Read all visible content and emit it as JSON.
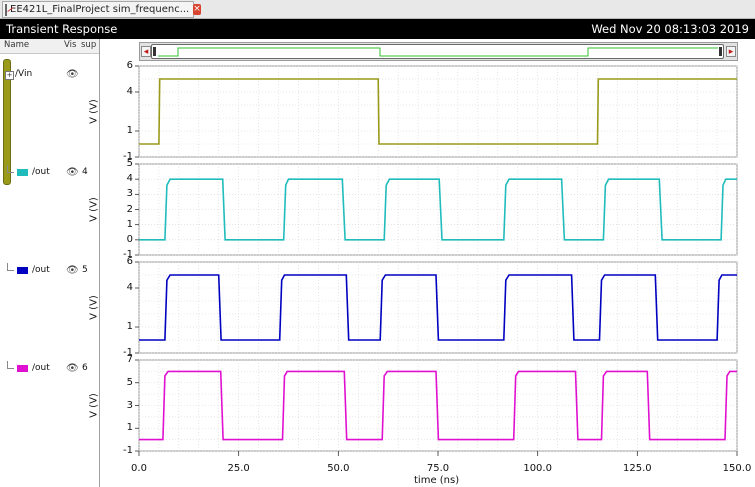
{
  "tab": {
    "title": "EE421L_FinalProject sim_frequenc...",
    "close_glyph": "×"
  },
  "window": {
    "title": "Transient Response",
    "timestamp": "Wed Nov 20 08:13:03 2019"
  },
  "columns": {
    "name": "Name",
    "vis": "Vis",
    "sup": "sup"
  },
  "signals": [
    {
      "name": "/Vin",
      "expand": "+",
      "number": "",
      "color": "#9a9a1a",
      "eye_icon": "eye-icon"
    },
    {
      "name": "/out",
      "number": "4",
      "color": "#20bcbc",
      "eye_icon": "eye-icon"
    },
    {
      "name": "/out",
      "number": "5",
      "color": "#0000c0",
      "eye_icon": "eye-icon"
    },
    {
      "name": "/out",
      "number": "6",
      "color": "#e010d0",
      "eye_icon": "eye-icon"
    }
  ],
  "scrollbar": {
    "left_arrow": "◂",
    "right_arrow": "▸"
  },
  "xaxis": {
    "title": "time (ns)",
    "ticks": [
      "0.0",
      "25.0",
      "50.0",
      "75.0",
      "100.0",
      "125.0",
      "150.0"
    ]
  },
  "yaxis_title": "V (V)",
  "chart_data": [
    {
      "type": "line",
      "name": "/Vin",
      "color": "#9a9a1a",
      "xlim": [
        0,
        150
      ],
      "ylim": [
        -1,
        6
      ],
      "yticks": [
        "6",
        "4",
        "1",
        "-1"
      ],
      "yticks_values": [
        6,
        4,
        1,
        -1
      ],
      "points": [
        [
          0,
          0
        ],
        [
          5,
          0
        ],
        [
          5.2,
          5
        ],
        [
          60,
          5
        ],
        [
          60.2,
          0
        ],
        [
          115,
          0
        ],
        [
          115.2,
          5
        ],
        [
          150,
          5
        ]
      ]
    },
    {
      "type": "line",
      "name": "/out",
      "color": "#20bcbc",
      "xlim": [
        0,
        150
      ],
      "ylim": [
        -1,
        5
      ],
      "yticks": [
        "5",
        "4",
        "3",
        "2",
        "1",
        "0",
        "-1"
      ],
      "yticks_values": [
        5,
        4,
        3,
        2,
        1,
        0,
        -1
      ],
      "points": [
        [
          0,
          0
        ],
        [
          6.5,
          0
        ],
        [
          7,
          3.6
        ],
        [
          7.8,
          4
        ],
        [
          21,
          4
        ],
        [
          21.6,
          0
        ],
        [
          36.3,
          0
        ],
        [
          36.8,
          3.6
        ],
        [
          37.5,
          4
        ],
        [
          51,
          4
        ],
        [
          51.7,
          0
        ],
        [
          61.5,
          0
        ],
        [
          62,
          3.6
        ],
        [
          62.8,
          4
        ],
        [
          75.3,
          4
        ],
        [
          76,
          0
        ],
        [
          91.5,
          0
        ],
        [
          92,
          3.6
        ],
        [
          92.8,
          4
        ],
        [
          106,
          4
        ],
        [
          106.7,
          0
        ],
        [
          116.5,
          0
        ],
        [
          117,
          3.6
        ],
        [
          117.8,
          4
        ],
        [
          130.5,
          4
        ],
        [
          131.2,
          0
        ],
        [
          146,
          0
        ],
        [
          146.5,
          3.6
        ],
        [
          147.2,
          4
        ],
        [
          150,
          4
        ]
      ]
    },
    {
      "type": "line",
      "name": "/out",
      "color": "#0000c0",
      "xlim": [
        0,
        150
      ],
      "ylim": [
        -1,
        6
      ],
      "yticks": [
        "6",
        "4",
        "1",
        "-1"
      ],
      "yticks_values": [
        6,
        4,
        1,
        -1
      ],
      "points": [
        [
          0,
          0
        ],
        [
          6.5,
          0
        ],
        [
          7,
          4.6
        ],
        [
          7.8,
          5
        ],
        [
          20,
          5
        ],
        [
          20.6,
          0
        ],
        [
          35.3,
          0
        ],
        [
          35.8,
          4.6
        ],
        [
          36.5,
          5
        ],
        [
          52,
          5
        ],
        [
          52.6,
          0
        ],
        [
          60.5,
          0
        ],
        [
          61,
          4.6
        ],
        [
          61.8,
          5
        ],
        [
          74.5,
          5
        ],
        [
          75.1,
          0
        ],
        [
          91.5,
          0
        ],
        [
          92,
          4.6
        ],
        [
          92.8,
          5
        ],
        [
          108.5,
          5
        ],
        [
          109.1,
          0
        ],
        [
          115.5,
          0
        ],
        [
          116,
          4.6
        ],
        [
          116.8,
          5
        ],
        [
          129.5,
          5
        ],
        [
          130.1,
          0
        ],
        [
          145,
          0
        ],
        [
          145.5,
          4.6
        ],
        [
          146.2,
          5
        ],
        [
          150,
          5
        ]
      ]
    },
    {
      "type": "line",
      "name": "/out",
      "color": "#e010d0",
      "xlim": [
        0,
        150
      ],
      "ylim": [
        -1,
        7
      ],
      "yticks": [
        "7",
        "5",
        "3",
        "1",
        "-1"
      ],
      "yticks_values": [
        7,
        5,
        3,
        1,
        -1
      ],
      "points": [
        [
          0,
          0
        ],
        [
          6,
          0
        ],
        [
          6.5,
          5.6
        ],
        [
          7.3,
          6
        ],
        [
          20.5,
          6
        ],
        [
          21.1,
          0
        ],
        [
          36,
          0
        ],
        [
          36.5,
          5.6
        ],
        [
          37.2,
          6
        ],
        [
          51.5,
          6
        ],
        [
          52.1,
          0
        ],
        [
          61,
          0
        ],
        [
          61.5,
          5.6
        ],
        [
          62.3,
          6
        ],
        [
          74.5,
          6
        ],
        [
          75.1,
          0
        ],
        [
          94,
          0
        ],
        [
          94.5,
          5.6
        ],
        [
          95.2,
          6
        ],
        [
          109.5,
          6
        ],
        [
          110.1,
          0
        ],
        [
          116,
          0
        ],
        [
          116.5,
          5.6
        ],
        [
          117.3,
          6
        ],
        [
          127.5,
          6
        ],
        [
          128.1,
          0
        ],
        [
          147,
          0
        ],
        [
          147.5,
          5.6
        ],
        [
          148.2,
          6
        ],
        [
          150,
          6
        ]
      ]
    }
  ]
}
